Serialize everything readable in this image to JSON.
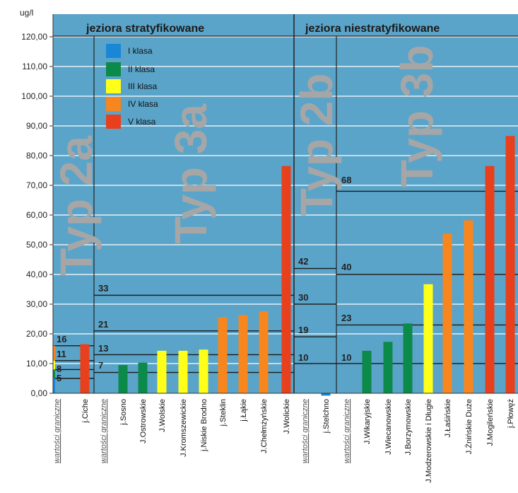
{
  "chart_data": {
    "type": "bar",
    "unit": "ug/l",
    "ylim": [
      0,
      125
    ],
    "yticks": [
      "0,00",
      "10,00",
      "20,00",
      "30,00",
      "40,00",
      "50,00",
      "60,00",
      "70,00",
      "80,00",
      "90,00",
      "100,00",
      "110,00",
      "120,00"
    ],
    "sections": [
      "jeziora stratyfikowane",
      "jeziora niestratyfikowane"
    ],
    "types": [
      "Typ 2a",
      "Typ 3a",
      "Typ 2b",
      "Typ 3b"
    ],
    "legend": [
      {
        "name": "I klasa",
        "color": "#1a86d6"
      },
      {
        "name": "II klasa",
        "color": "#0c8a49"
      },
      {
        "name": "III klasa",
        "color": "#ffff1a"
      },
      {
        "name": "IV klasa",
        "color": "#f7861e"
      },
      {
        "name": "V klasa",
        "color": "#e8401c"
      }
    ],
    "categories": [
      "wartości graniczne",
      "j.Ciche",
      "wartości graniczne",
      "j.Sosno",
      "J.Ostrowskie",
      "J.Wolskie",
      "J.Kromszewickie",
      "j.Niskie Brodno",
      "j.Steklin",
      "j.Łąkie",
      "J.Chełmżyńskie",
      "J.Wolickie",
      "wartości graniczne",
      "j.Stelchno",
      "wartości graniczne",
      "J.Wikaryjskie",
      "J.Wiecanowskie",
      "J.Borzymowskie",
      "J.Modzerowskie i Długie",
      "J.Łaśińskie",
      "J.Żnińskie Duże",
      "J.Mogileńskie",
      "j.Płowęż"
    ],
    "values": [
      null,
      16.5,
      null,
      9.5,
      10.3,
      14.3,
      14.3,
      14.7,
      25.5,
      26.3,
      27.6,
      76.5,
      null,
      -0.8,
      null,
      14.3,
      17.3,
      23.5,
      36.7,
      53.7,
      58.2,
      76.5,
      86.6
    ],
    "classes": [
      null,
      "V klasa",
      null,
      "II klasa",
      "II klasa",
      "III klasa",
      "III klasa",
      "III klasa",
      "IV klasa",
      "IV klasa",
      "IV klasa",
      "V klasa",
      null,
      "I klasa",
      null,
      "II klasa",
      "II klasa",
      "II klasa",
      "III klasa",
      "IV klasa",
      "IV klasa",
      "V klasa",
      "V klasa"
    ],
    "thresholds": [
      {
        "group": "Typ 2a",
        "values": [
          5,
          8,
          11,
          16
        ]
      },
      {
        "group": "Typ 3a",
        "values": [
          7,
          13,
          21,
          33
        ]
      },
      {
        "group": "Typ 2b",
        "values": [
          10,
          19,
          30,
          42
        ]
      },
      {
        "group": "Typ 3b",
        "values": [
          10,
          23,
          40,
          68
        ]
      }
    ],
    "threshold_labels": [
      "5",
      "8",
      "11",
      "16",
      "7",
      "13",
      "21",
      "33",
      "10",
      "19",
      "30",
      "42",
      "10",
      "23",
      "40",
      "68"
    ]
  }
}
